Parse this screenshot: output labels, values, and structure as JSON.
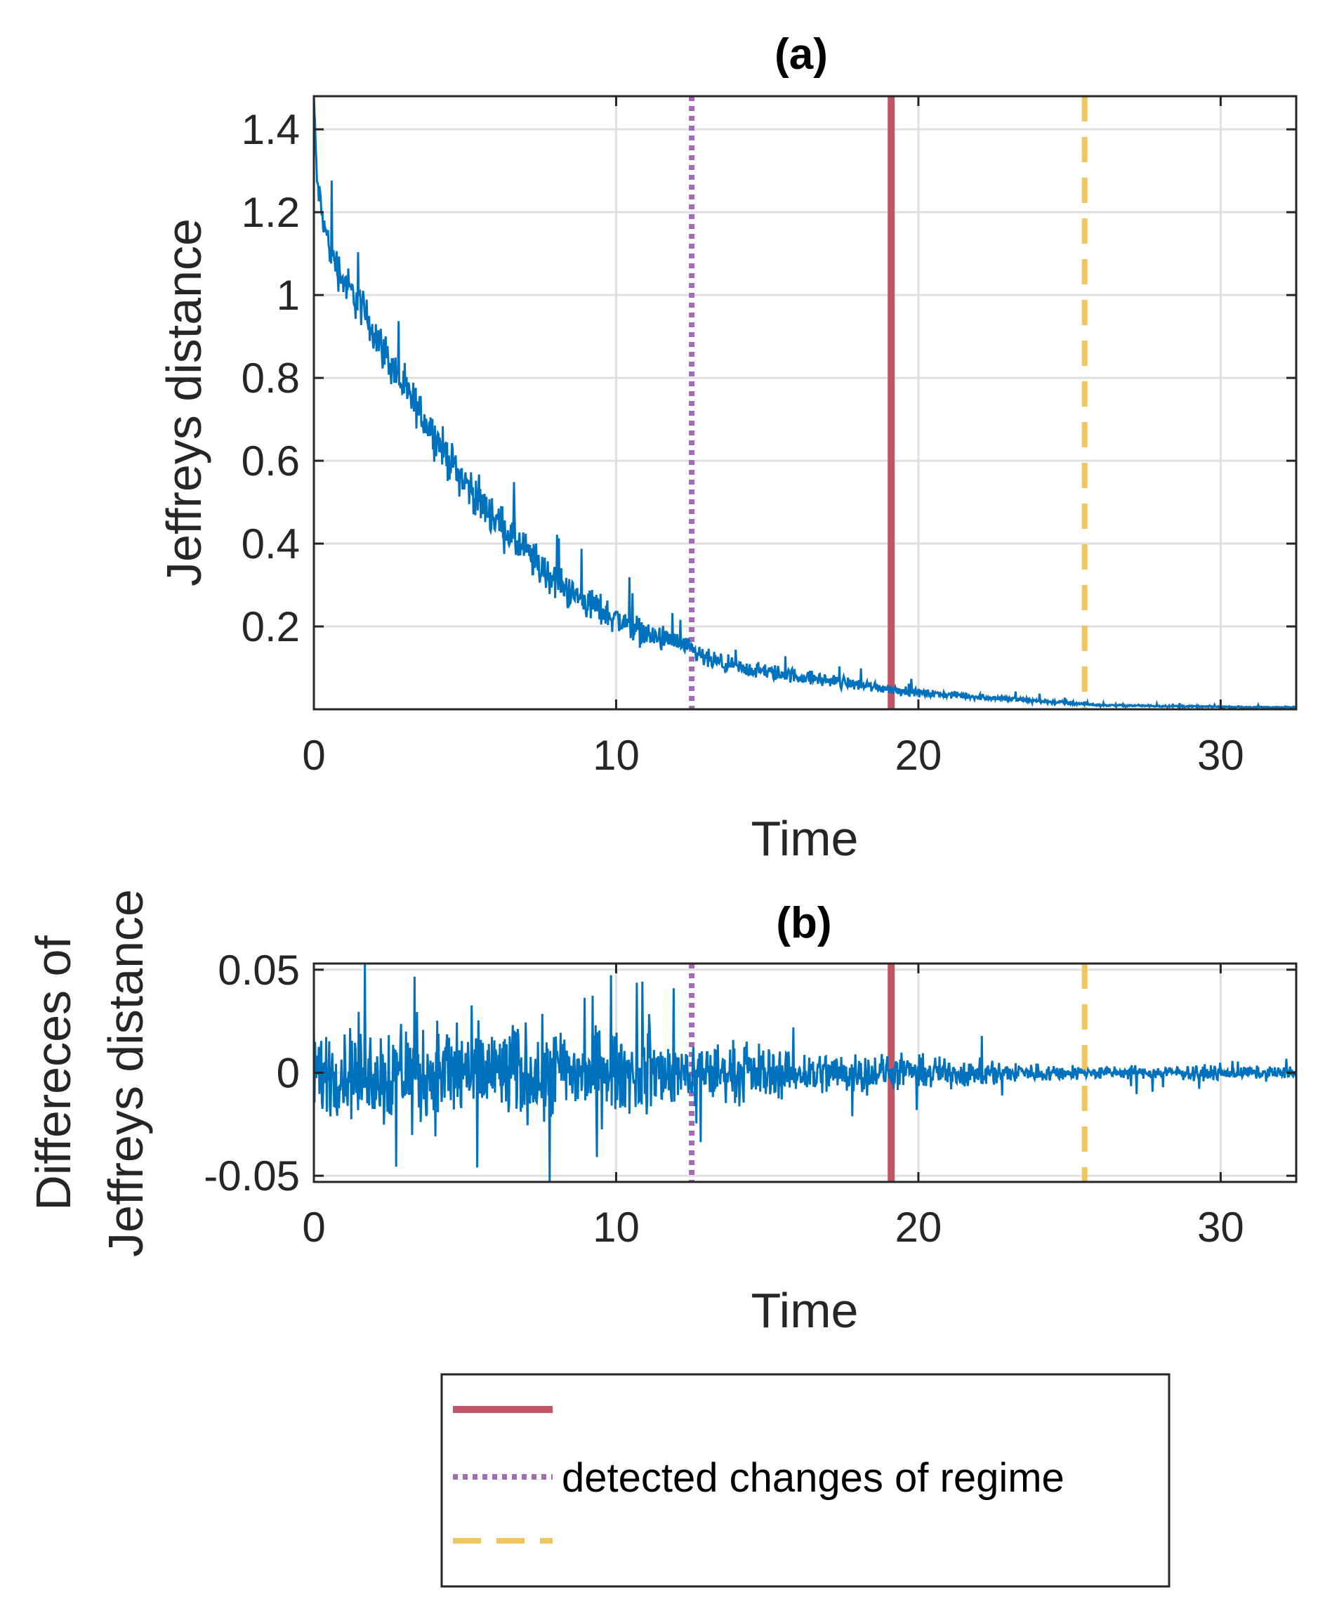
{
  "colors": {
    "signal": "#0072BD",
    "solid": "#C25565",
    "dotted": "#A66BB8",
    "dashed": "#F0C65E",
    "axis": "#262626",
    "grid": "#E0E0E0"
  },
  "chart_data": [
    {
      "id": "a",
      "type": "line",
      "title": "(a)",
      "xlabel": "Time",
      "ylabel": "Jeffreys distance",
      "xlim": [
        0,
        32.5
      ],
      "ylim": [
        0,
        1.48
      ],
      "xticks": [
        0,
        10,
        20,
        30
      ],
      "xtick_labels": [
        "0",
        "10",
        "20",
        "30"
      ],
      "yticks": [
        0.2,
        0.4,
        0.6,
        0.8,
        1,
        1.2,
        1.4
      ],
      "ytick_labels": [
        "0.2",
        "0.4",
        "0.6",
        "0.8",
        "1",
        "1.2",
        "1.4"
      ],
      "grid": true,
      "series": [
        {
          "x": [
            0,
            0.1,
            0.3,
            0.5,
            1,
            1.5,
            2,
            2.5,
            3,
            3.5,
            4,
            4.5,
            5,
            5.5,
            6,
            6.5,
            7,
            7.5,
            8,
            8.5,
            9,
            10,
            11,
            12,
            12.5,
            13,
            14,
            15,
            16,
            17,
            18,
            19,
            20,
            21,
            22,
            23,
            24,
            25,
            25.5,
            26,
            27,
            28,
            29,
            30,
            31,
            32.5
          ],
          "y": [
            1.48,
            1.28,
            1.18,
            1.12,
            1.03,
            0.98,
            0.91,
            0.84,
            0.77,
            0.72,
            0.66,
            0.6,
            0.55,
            0.5,
            0.46,
            0.42,
            0.38,
            0.34,
            0.31,
            0.28,
            0.26,
            0.22,
            0.18,
            0.16,
            0.14,
            0.12,
            0.1,
            0.09,
            0.08,
            0.07,
            0.06,
            0.05,
            0.04,
            0.035,
            0.03,
            0.025,
            0.02,
            0.015,
            0.012,
            0.01,
            0.009,
            0.008,
            0.007,
            0.006,
            0.005,
            0.005
          ],
          "noise_amplitude": [
            0.02,
            0.04,
            0.05,
            0.06,
            0.06,
            0.06,
            0.06,
            0.06,
            0.06,
            0.06,
            0.06,
            0.06,
            0.06,
            0.06,
            0.06,
            0.06,
            0.06,
            0.06,
            0.05,
            0.05,
            0.05,
            0.045,
            0.04,
            0.035,
            0.03,
            0.03,
            0.025,
            0.025,
            0.022,
            0.02,
            0.018,
            0.015,
            0.012,
            0.01,
            0.009,
            0.008,
            0.007,
            0.006,
            0.004,
            0.003,
            0.003,
            0.003,
            0.003,
            0.002,
            0.002,
            0.002
          ]
        }
      ],
      "change_points": [
        {
          "x": 12.5,
          "style": "dotted"
        },
        {
          "x": 19.1,
          "style": "solid"
        },
        {
          "x": 25.5,
          "style": "dashed"
        }
      ]
    },
    {
      "id": "b",
      "type": "line",
      "title": "(b)",
      "xlabel": "Time",
      "ylabel": [
        "Differeces of",
        "Jeffreys distance"
      ],
      "xlim": [
        0,
        32.5
      ],
      "ylim": [
        -0.053,
        0.053
      ],
      "xticks": [
        0,
        10,
        20,
        30
      ],
      "xtick_labels": [
        "0",
        "10",
        "20",
        "30"
      ],
      "yticks": [
        -0.05,
        0,
        0.05
      ],
      "ytick_labels": [
        "-0.05",
        "0",
        "0.05"
      ],
      "grid": true,
      "series": [
        {
          "x": [
            0,
            3,
            8,
            12.5,
            19.1,
            21,
            25.5,
            32.5
          ],
          "noise_amplitude": [
            0.02,
            0.025,
            0.022,
            0.015,
            0.008,
            0.007,
            0.003,
            0.003
          ]
        }
      ],
      "change_points": [
        {
          "x": 12.5,
          "style": "dotted"
        },
        {
          "x": 19.1,
          "style": "solid"
        },
        {
          "x": 25.5,
          "style": "dashed"
        }
      ]
    }
  ],
  "legend": {
    "entries": [
      {
        "style": "solid",
        "label": ""
      },
      {
        "style": "dotted",
        "label": "detected changes of regime"
      },
      {
        "style": "dashed",
        "label": ""
      }
    ]
  }
}
